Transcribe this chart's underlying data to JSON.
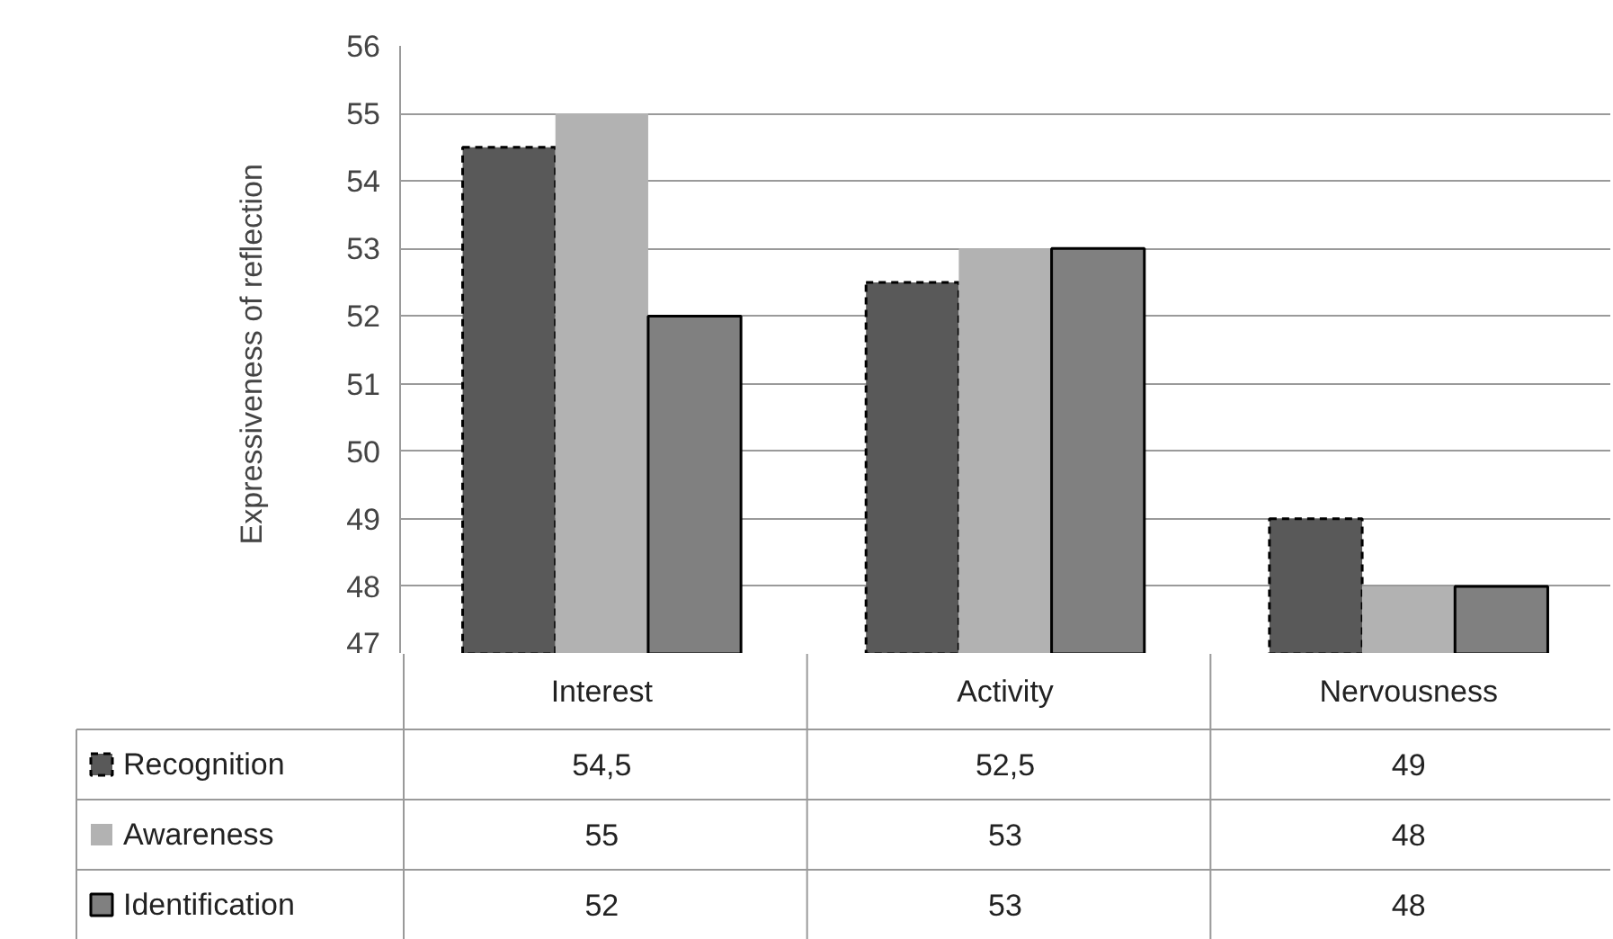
{
  "chart_data": {
    "type": "bar",
    "ylabel": "Expressiveness of  reflection",
    "categories": [
      "Interest",
      "Activity",
      "Nervousness"
    ],
    "ylim": [
      47,
      56
    ],
    "yticks": [
      47,
      48,
      49,
      50,
      51,
      52,
      53,
      54,
      55,
      56
    ],
    "grid": "y",
    "legend": "bottom",
    "series": [
      {
        "name": "Recognition",
        "color": "#595959",
        "values": [
          54.5,
          52.5,
          49
        ],
        "value_labels": [
          "54,5",
          "52,5",
          "49"
        ],
        "line_style": "dashed"
      },
      {
        "name": "Awareness",
        "color": "#b2b2b2",
        "values": [
          55,
          53,
          48
        ],
        "value_labels": [
          "55",
          "53",
          "48"
        ]
      },
      {
        "name": "Identification",
        "color": "#808080",
        "values": [
          52,
          53,
          48
        ],
        "value_labels": [
          "52",
          "53",
          "48"
        ],
        "line_style": "solid"
      }
    ]
  }
}
